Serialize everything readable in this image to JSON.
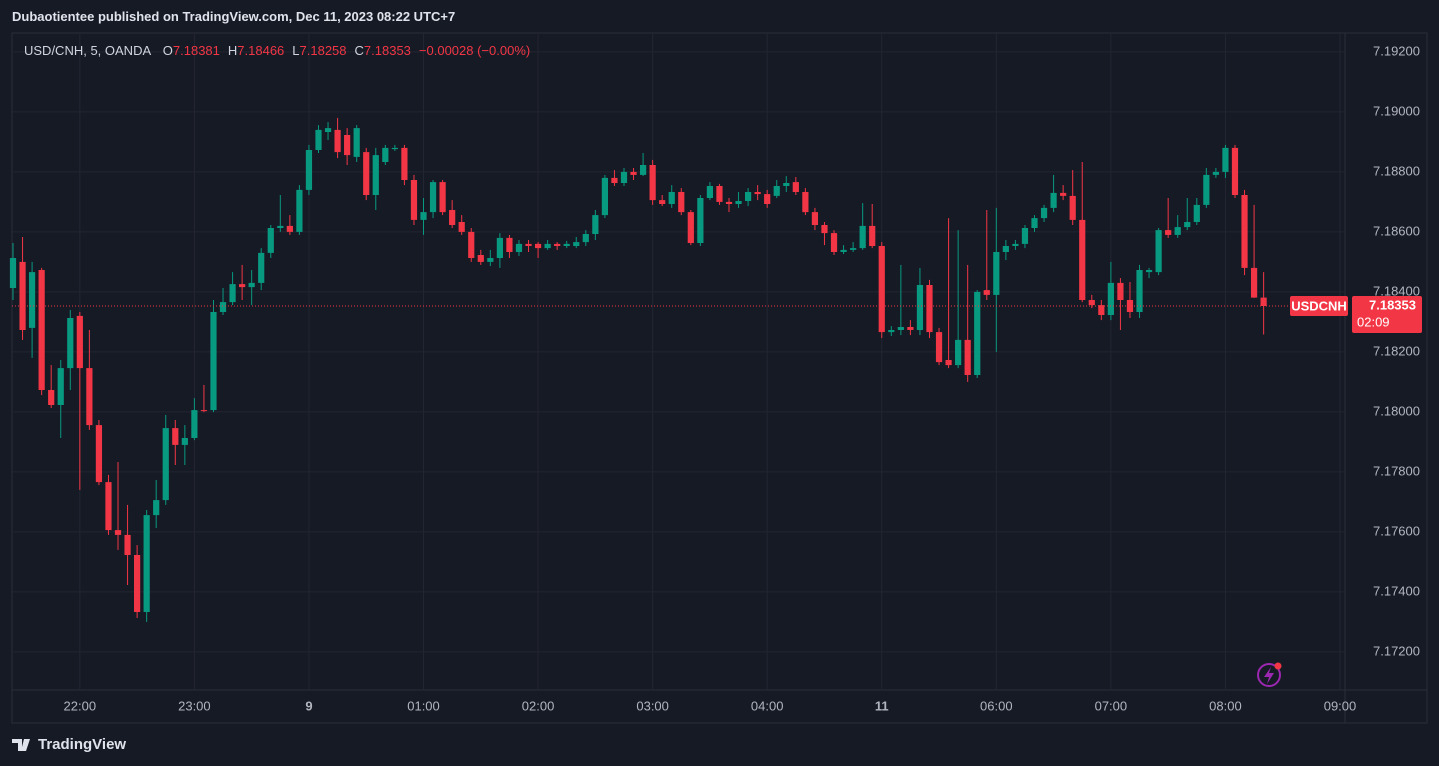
{
  "header": {
    "publisher": "Dubaotientee published on TradingView.com, Dec 11, 2023 08:22 UTC+7"
  },
  "footer": {
    "logo": "TradingView"
  },
  "chart_data": {
    "type": "candlestick",
    "symbol": "USD/CNH, 5, OANDA",
    "ohlc_labels": [
      "O",
      "H",
      "L",
      "C"
    ],
    "change": "−0.00028 (−0.00%)",
    "price_tag": "USDCNH",
    "countdown": "02:09",
    "up_color": "#089981",
    "down_color": "#f23645",
    "grid": true,
    "categories": [
      null,
      null,
      null,
      null,
      null,
      null,
      null,
      "22:00",
      null,
      null,
      null,
      null,
      null,
      null,
      null,
      null,
      null,
      null,
      null,
      "23:00",
      null,
      null,
      null,
      null,
      null,
      null,
      null,
      null,
      null,
      null,
      null,
      "9",
      null,
      null,
      null,
      null,
      null,
      null,
      null,
      null,
      null,
      null,
      null,
      "01:00",
      null,
      null,
      null,
      null,
      null,
      null,
      null,
      null,
      null,
      null,
      null,
      "02:00",
      null,
      null,
      null,
      null,
      null,
      null,
      null,
      null,
      null,
      null,
      null,
      "03:00",
      null,
      null,
      null,
      null,
      null,
      null,
      null,
      null,
      null,
      null,
      null,
      "04:00",
      null,
      null,
      null,
      null,
      null,
      null,
      null,
      null,
      null,
      null,
      null,
      "11",
      null,
      null,
      null,
      null,
      null,
      null,
      null,
      null,
      null,
      null,
      null,
      "06:00",
      null,
      null,
      null,
      null,
      null,
      null,
      null,
      null,
      null,
      null,
      null,
      "07:00",
      null,
      null,
      null,
      null,
      null,
      null,
      null,
      null,
      null,
      null,
      null,
      "08:00",
      null,
      null,
      null,
      null,
      null,
      null,
      null,
      null,
      null,
      null,
      null,
      "09:00"
    ],
    "open": [
      7.18413,
      7.185,
      7.1828,
      7.18473,
      7.18073,
      7.18023,
      7.18146,
      7.1832,
      7.18146,
      7.17956,
      7.17766,
      7.17606,
      7.1759,
      7.17523,
      7.17333,
      7.17656,
      7.17706,
      7.17946,
      7.1789,
      7.17913,
      7.18006,
      7.18006,
      7.18333,
      7.18366,
      7.18426,
      7.18416,
      7.1843,
      7.1853,
      7.18613,
      7.1862,
      7.186,
      7.1874,
      7.18873,
      7.18933,
      7.1894,
      7.18923,
      7.1885,
      7.18866,
      7.18723,
      7.18833,
      7.18876,
      7.1888,
      7.18773,
      7.1864,
      7.18666,
      7.18766,
      7.18673,
      7.18633,
      7.186,
      7.18523,
      7.185,
      7.18513,
      7.1858,
      7.18533,
      7.1856,
      7.1856,
      7.18546,
      7.1856,
      7.18553,
      7.18553,
      7.18566,
      7.18593,
      7.18656,
      7.1878,
      7.18763,
      7.188,
      7.1879,
      7.18823,
      7.18706,
      7.18693,
      7.18733,
      7.18666,
      7.18563,
      7.18713,
      7.18753,
      7.187,
      7.18693,
      7.18703,
      7.18733,
      7.18726,
      7.1872,
      7.18753,
      7.18766,
      7.18733,
      7.18666,
      7.18623,
      7.18596,
      7.18533,
      7.1854,
      7.18546,
      7.1862,
      7.18553,
      7.18266,
      7.18273,
      7.18283,
      7.18273,
      7.18423,
      7.18266,
      7.18173,
      7.18156,
      7.1824,
      7.18123,
      7.18406,
      7.1839,
      7.18533,
      7.18553,
      7.1856,
      7.18613,
      7.18646,
      7.1868,
      7.1873,
      7.1872,
      7.1864,
      7.18373,
      7.18356,
      7.18323,
      7.1843,
      7.18373,
      7.18333,
      7.18466,
      7.18466,
      7.18606,
      7.1859,
      7.18616,
      7.18633,
      7.1869,
      7.1879,
      7.188,
      7.1888,
      7.18723,
      7.1848,
      7.18381,
      null,
      null,
      null,
      null,
      null,
      null,
      null,
      null
    ],
    "high": [
      7.18563,
      7.18583,
      7.185,
      7.1848,
      7.18156,
      7.18173,
      7.1834,
      7.18333,
      7.18273,
      7.17973,
      7.1779,
      7.17833,
      7.1769,
      7.17556,
      7.17673,
      7.17773,
      7.1799,
      7.17973,
      7.17956,
      7.18046,
      7.1809,
      7.18373,
      7.18413,
      7.18466,
      7.1849,
      7.18473,
      7.18546,
      7.18623,
      7.18723,
      7.18656,
      7.18756,
      7.1889,
      7.18956,
      7.18966,
      7.1898,
      7.18946,
      7.18956,
      7.1888,
      7.1888,
      7.1889,
      7.1889,
      7.1889,
      7.1879,
      7.18713,
      7.18773,
      7.18773,
      7.18706,
      7.18656,
      7.18613,
      7.1854,
      7.1854,
      7.18596,
      7.1859,
      7.18573,
      7.18573,
      7.18566,
      7.18573,
      7.18566,
      7.1857,
      7.18583,
      7.18606,
      7.18673,
      7.1879,
      7.18806,
      7.18813,
      7.18813,
      7.18863,
      7.1884,
      7.18723,
      7.18756,
      7.18746,
      7.18673,
      7.18723,
      7.18766,
      7.1876,
      7.18713,
      7.18733,
      7.18746,
      7.18756,
      7.1874,
      7.18773,
      7.18786,
      7.18783,
      7.18746,
      7.1868,
      7.18633,
      7.18606,
      7.18556,
      7.18566,
      7.18696,
      7.18693,
      7.18566,
      7.18286,
      7.1849,
      7.18306,
      7.1848,
      7.1844,
      7.1828,
      7.18646,
      7.18606,
      7.1849,
      7.18406,
      7.18673,
      7.1868,
      7.18573,
      7.18573,
      7.18623,
      7.18656,
      7.1869,
      7.1879,
      7.18756,
      7.18806,
      7.18833,
      7.1839,
      7.18373,
      7.185,
      7.18446,
      7.18433,
      7.1849,
      7.1848,
      7.18613,
      7.18713,
      7.18656,
      7.18713,
      7.18713,
      7.18813,
      7.18813,
      7.1889,
      7.1889,
      7.1874,
      7.1869,
      7.18466,
      null,
      null,
      null,
      null,
      null,
      null,
      null,
      null
    ],
    "low": [
      7.18373,
      7.1824,
      7.1818,
      7.18056,
      7.18013,
      7.17913,
      7.18073,
      7.1774,
      7.1794,
      7.17756,
      7.1759,
      7.1754,
      7.17423,
      7.17313,
      7.173,
      7.17613,
      7.1769,
      7.17823,
      7.17823,
      7.17906,
      7.17999,
      7.17999,
      7.18323,
      7.18356,
      7.18373,
      7.18356,
      7.18406,
      7.18513,
      7.186,
      7.1859,
      7.1859,
      7.18723,
      7.18863,
      7.18906,
      7.18846,
      7.18823,
      7.18833,
      7.18706,
      7.18673,
      7.18823,
      7.1887,
      7.18756,
      7.18623,
      7.1859,
      7.18646,
      7.18656,
      7.18613,
      7.1859,
      7.185,
      7.1849,
      7.18486,
      7.1848,
      7.18513,
      7.1852,
      7.18533,
      7.18513,
      7.1854,
      7.1854,
      7.18546,
      7.18546,
      7.18553,
      7.18573,
      7.18646,
      7.18753,
      7.18753,
      7.18773,
      7.18786,
      7.1869,
      7.18686,
      7.1868,
      7.18656,
      7.18556,
      7.18553,
      7.18706,
      7.1869,
      7.18666,
      7.1868,
      7.18686,
      7.18706,
      7.1868,
      7.18713,
      7.18733,
      7.18723,
      7.18656,
      7.18606,
      7.18556,
      7.18523,
      7.18526,
      7.18533,
      7.1854,
      7.18546,
      7.18246,
      7.18253,
      7.18256,
      7.18256,
      7.18256,
      7.18246,
      7.18156,
      7.18146,
      7.18146,
      7.181,
      7.18113,
      7.18373,
      7.182,
      7.18506,
      7.1854,
      7.18546,
      7.186,
      7.18633,
      7.18666,
      7.18706,
      7.18623,
      7.18366,
      7.18346,
      7.18306,
      7.18306,
      7.18273,
      7.18313,
      7.18313,
      7.18446,
      7.18456,
      7.1858,
      7.1858,
      7.18606,
      7.18623,
      7.1868,
      7.1878,
      7.1878,
      7.18713,
      7.18456,
      7.1838,
      7.18258,
      null,
      null,
      null,
      null,
      null,
      null,
      null,
      null
    ],
    "close": [
      7.18513,
      7.18273,
      7.18466,
      7.18073,
      7.18023,
      7.18146,
      7.18313,
      7.18146,
      7.17956,
      7.17766,
      7.17606,
      7.1759,
      7.17523,
      7.17333,
      7.17656,
      7.17706,
      7.17946,
      7.1789,
      7.17913,
      7.18006,
      7.18003,
      7.18333,
      7.18366,
      7.18426,
      7.18416,
      7.1843,
      7.1853,
      7.18613,
      7.1862,
      7.186,
      7.1874,
      7.18873,
      7.1894,
      7.18946,
      7.18866,
      7.18856,
      7.18946,
      7.18723,
      7.18856,
      7.1888,
      7.1888,
      7.18773,
      7.1864,
      7.18666,
      7.18766,
      7.18666,
      7.18623,
      7.186,
      7.18513,
      7.185,
      7.18513,
      7.1858,
      7.18533,
      7.1856,
      7.18553,
      7.18546,
      7.1856,
      7.18553,
      7.1856,
      7.18566,
      7.18593,
      7.18656,
      7.1878,
      7.18763,
      7.188,
      7.1879,
      7.18823,
      7.18706,
      7.18693,
      7.18733,
      7.18666,
      7.18563,
      7.18713,
      7.18753,
      7.187,
      7.18693,
      7.18703,
      7.18733,
      7.18726,
      7.18693,
      7.18753,
      7.18763,
      7.18733,
      7.18666,
      7.18623,
      7.18596,
      7.18533,
      7.1854,
      7.18546,
      7.1862,
      7.18553,
      7.18266,
      7.18273,
      7.18283,
      7.18273,
      7.18423,
      7.18266,
      7.18166,
      7.18156,
      7.1824,
      7.18123,
      7.184,
      7.1839,
      7.18533,
      7.18553,
      7.1856,
      7.18613,
      7.18646,
      7.1868,
      7.1873,
      7.1872,
      7.1864,
      7.18373,
      7.18356,
      7.18323,
      7.1843,
      7.18373,
      7.18333,
      7.18473,
      7.18473,
      7.18606,
      7.1859,
      7.18616,
      7.18633,
      7.1869,
      7.1879,
      7.188,
      7.1888,
      7.18723,
      7.1848,
      7.18381,
      7.18353,
      null,
      null,
      null,
      null,
      null,
      null,
      null,
      null
    ],
    "ylim": [
      7.17073,
      7.19263
    ],
    "yticks": [
      {
        "value": 7.172,
        "label": "7.17200"
      },
      {
        "value": 7.174,
        "label": "7.17400"
      },
      {
        "value": 7.176,
        "label": "7.17600"
      },
      {
        "value": 7.178,
        "label": "7.17800"
      },
      {
        "value": 7.18,
        "label": "7.18000"
      },
      {
        "value": 7.182,
        "label": "7.18200"
      },
      {
        "value": 7.184,
        "label": "7.18400"
      },
      {
        "value": 7.186,
        "label": "7.18600"
      },
      {
        "value": 7.188,
        "label": "7.18800"
      },
      {
        "value": 7.19,
        "label": "7.19000"
      },
      {
        "value": 7.192,
        "label": "7.19200"
      }
    ]
  }
}
